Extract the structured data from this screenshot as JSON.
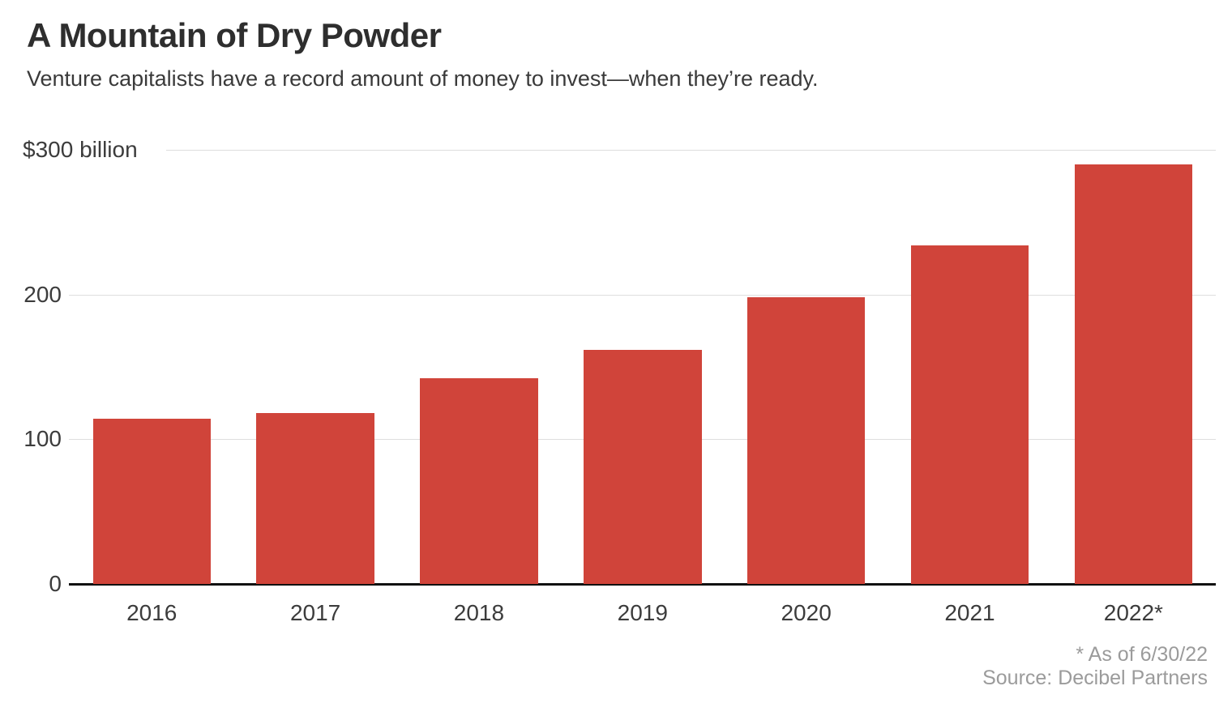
{
  "header": {
    "title": "A Mountain of Dry Powder",
    "subtitle": "Venture capitalists have a record amount of money to invest—when they’re ready."
  },
  "chart_data": {
    "type": "bar",
    "title": "A Mountain of Dry Powder",
    "subtitle": "Venture capitalists have a record amount of money to invest—when they’re ready.",
    "categories": [
      "2016",
      "2017",
      "2018",
      "2019",
      "2020",
      "2021",
      "2022*"
    ],
    "values": [
      114,
      118,
      142,
      162,
      198,
      234,
      290
    ],
    "unit": "billions of US dollars",
    "xlabel": "",
    "ylabel": "$ billion",
    "ylim": [
      0,
      300
    ],
    "yticks": [
      {
        "value": 300,
        "label": "$300 billion"
      },
      {
        "value": 200,
        "label": "200"
      },
      {
        "value": 100,
        "label": "100"
      },
      {
        "value": 0,
        "label": "0"
      }
    ],
    "grid": "horizontal",
    "legend_position": "none",
    "bar_color": "#d0443a",
    "gridline_color": "#dedede",
    "axis_color": "#111111"
  },
  "footnote": {
    "asterisk_note": "* As of 6/30/22",
    "source": "Source: Decibel Partners"
  }
}
